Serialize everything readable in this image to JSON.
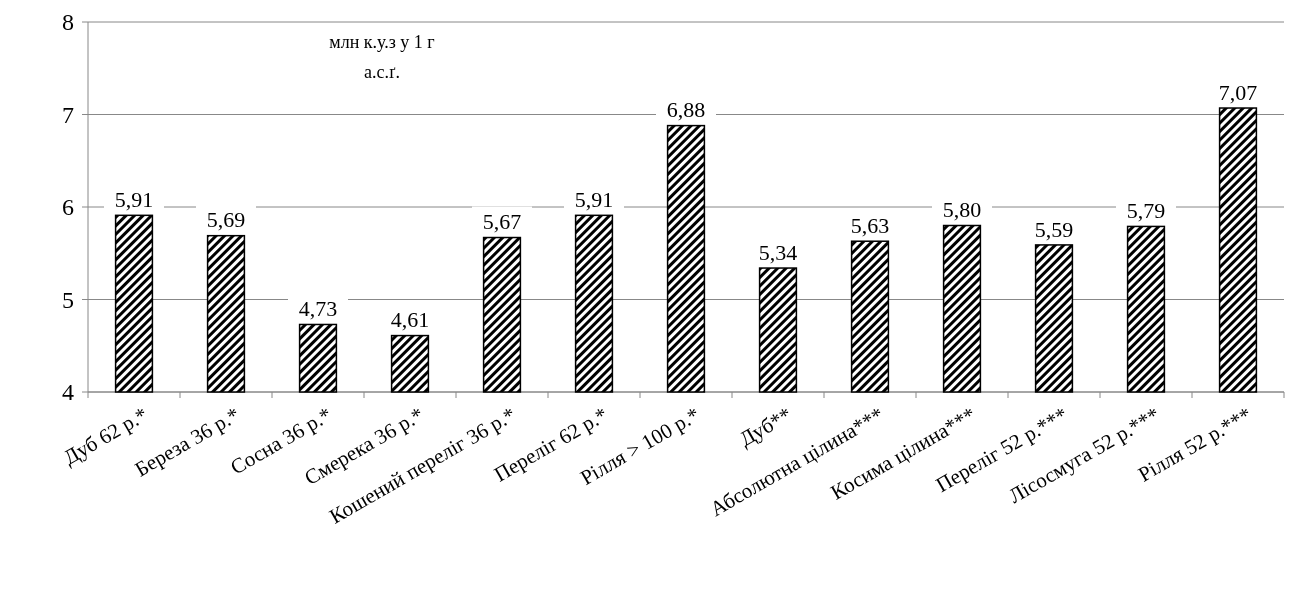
{
  "chart_data": {
    "type": "bar",
    "ylabel": "млн  к.у.з у 1 г а.с.ґ.",
    "categories": [
      "Дуб 62 р.*",
      "Береза 36 р.*",
      "Сосна 36 р.*",
      "Смерека 36 р.*",
      "Кошений переліг 36 р.*",
      "Переліг 62 р.*",
      "Рілля > 100 р.*",
      "Дуб**",
      "Абсолютна цілина***",
      "Косима цілина***",
      "Переліг 52 р.***",
      "Лісосмуга 52 р.***",
      "Рілля 52 р.***"
    ],
    "values": [
      5.91,
      5.69,
      4.73,
      4.61,
      5.67,
      5.91,
      6.88,
      5.34,
      5.63,
      5.8,
      5.59,
      5.79,
      7.07
    ],
    "value_labels": [
      "5,91",
      "5,69",
      "4,73",
      "4,61",
      "5,67",
      "5,91",
      "6,88",
      "5,34",
      "5,63",
      "5,80",
      "5,59",
      "5,79",
      "7,07"
    ],
    "color": "#000000",
    "ylim": [
      4,
      8
    ],
    "yticks": [
      4,
      5,
      6,
      7,
      8
    ],
    "grid": "y"
  }
}
